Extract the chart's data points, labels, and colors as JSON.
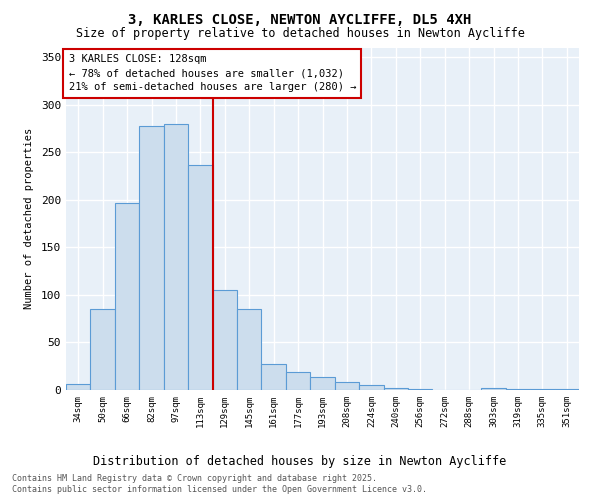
{
  "title1": "3, KARLES CLOSE, NEWTON AYCLIFFE, DL5 4XH",
  "title2": "Size of property relative to detached houses in Newton Aycliffe",
  "xlabel": "Distribution of detached houses by size in Newton Aycliffe",
  "ylabel": "Number of detached properties",
  "categories": [
    "34sqm",
    "50sqm",
    "66sqm",
    "82sqm",
    "97sqm",
    "113sqm",
    "129sqm",
    "145sqm",
    "161sqm",
    "177sqm",
    "193sqm",
    "208sqm",
    "224sqm",
    "240sqm",
    "256sqm",
    "272sqm",
    "288sqm",
    "303sqm",
    "319sqm",
    "335sqm",
    "351sqm"
  ],
  "values": [
    6,
    85,
    197,
    278,
    280,
    236,
    105,
    85,
    27,
    19,
    14,
    8,
    5,
    2,
    1,
    0,
    0,
    2,
    1,
    1,
    1
  ],
  "bar_color": "#ccdded",
  "bar_edge_color": "#5b9bd5",
  "vline_color": "#cc0000",
  "vline_x_index": 5.5,
  "annotation_text_line1": "3 KARLES CLOSE: 128sqm",
  "annotation_text_line2": "← 78% of detached houses are smaller (1,032)",
  "annotation_text_line3": "21% of semi-detached houses are larger (280) →",
  "footer1": "Contains HM Land Registry data © Crown copyright and database right 2025.",
  "footer2": "Contains public sector information licensed under the Open Government Licence v3.0.",
  "ylim": [
    0,
    360
  ],
  "yticks": [
    0,
    50,
    100,
    150,
    200,
    250,
    300,
    350
  ],
  "bg_color": "#e8f0f8",
  "grid_color": "#ffffff"
}
